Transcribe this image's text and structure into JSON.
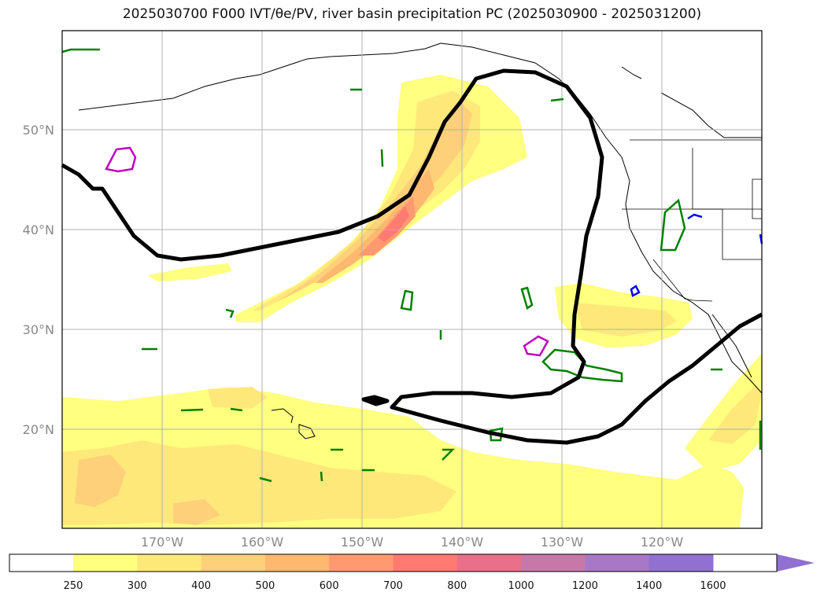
{
  "title": "2025030700 F000 IVT/θe/PV, river basin precipitation PC (2025030900 - 2025031200)",
  "map": {
    "lat_labels": [
      "50°N",
      "40°N",
      "30°N",
      "20°N"
    ],
    "lon_labels": [
      "170°W",
      "160°W",
      "150°W",
      "140°W",
      "130°W",
      "120°W"
    ],
    "gridlines": true
  },
  "colorbar": {
    "ticks": [
      "250",
      "300",
      "400",
      "500",
      "600",
      "700",
      "800",
      "1000",
      "1200",
      "1400",
      "1600"
    ],
    "colors": [
      "#ffff80",
      "#ffe87a",
      "#ffd07a",
      "#ffb870",
      "#ff9a70",
      "#ff7a70",
      "#e8708a",
      "#c878a8",
      "#a878c8",
      "#9070d0"
    ],
    "extend": "max"
  },
  "colors": {
    "ivt_contour_black": "#000000",
    "theta_e_green": "#008000",
    "pv_magenta": "#c000c0",
    "precip_blue": "#0000ff"
  }
}
